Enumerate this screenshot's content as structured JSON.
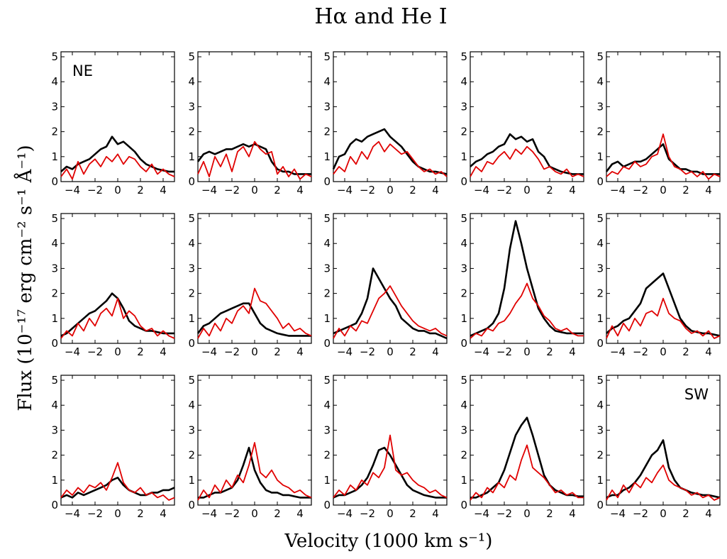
{
  "chart_data": {
    "type": "line",
    "title": "Hα and He I",
    "xlabel": "Velocity (1000 km s⁻¹)",
    "ylabel": "Flux (10⁻¹⁷ erg cm⁻² s⁻¹ Å⁻¹)",
    "xlim": [
      -5,
      5
    ],
    "ylim": [
      0,
      5.2
    ],
    "xticks": [
      -4,
      -2,
      0,
      2,
      4
    ],
    "xtick_labels": [
      "−4",
      "−2",
      "0",
      "2",
      "4"
    ],
    "yticks": [
      0,
      1,
      2,
      3,
      4,
      5
    ],
    "ytick_labels": [
      "0",
      "1",
      "2",
      "3",
      "4",
      "5"
    ],
    "colors": {
      "ha": "#000000",
      "he": "#e00000"
    },
    "corner_labels": {
      "ne": "NE",
      "sw": "SW"
    },
    "x": [
      -5,
      -4.5,
      -4,
      -3.5,
      -3,
      -2.5,
      -2,
      -1.5,
      -1,
      -0.5,
      0,
      0.5,
      1,
      1.5,
      2,
      2.5,
      3,
      3.5,
      4,
      4.5,
      5
    ],
    "panels": [
      {
        "row": 0,
        "col": 0,
        "label": "NE",
        "series": [
          {
            "name": "Hα",
            "values": [
              0.4,
              0.6,
              0.5,
              0.7,
              0.8,
              0.9,
              1.1,
              1.3,
              1.4,
              1.8,
              1.5,
              1.6,
              1.4,
              1.2,
              0.9,
              0.7,
              0.6,
              0.5,
              0.45,
              0.4,
              0.4
            ]
          },
          {
            "name": "He I",
            "values": [
              0.2,
              0.5,
              0.1,
              0.8,
              0.3,
              0.7,
              0.9,
              0.6,
              1.0,
              0.8,
              1.1,
              0.7,
              1.0,
              0.9,
              0.6,
              0.4,
              0.7,
              0.3,
              0.5,
              0.3,
              0.2
            ]
          }
        ]
      },
      {
        "row": 0,
        "col": 1,
        "label": "",
        "series": [
          {
            "name": "Hα",
            "values": [
              0.8,
              1.1,
              1.2,
              1.1,
              1.2,
              1.3,
              1.3,
              1.4,
              1.5,
              1.4,
              1.5,
              1.4,
              1.3,
              0.8,
              0.5,
              0.4,
              0.4,
              0.3,
              0.3,
              0.3,
              0.3
            ]
          },
          {
            "name": "He I",
            "values": [
              0.3,
              0.8,
              0.2,
              1.0,
              0.6,
              1.1,
              0.4,
              1.2,
              1.4,
              1.0,
              1.6,
              1.3,
              1.1,
              1.2,
              0.3,
              0.6,
              0.2,
              0.5,
              0.1,
              0.3,
              0.2
            ]
          }
        ]
      },
      {
        "row": 0,
        "col": 2,
        "label": "",
        "series": [
          {
            "name": "Hα",
            "values": [
              0.5,
              1.0,
              1.1,
              1.5,
              1.7,
              1.6,
              1.8,
              1.9,
              2.0,
              2.1,
              1.8,
              1.6,
              1.4,
              1.1,
              0.8,
              0.6,
              0.5,
              0.4,
              0.4,
              0.35,
              0.3
            ]
          },
          {
            "name": "He I",
            "values": [
              0.3,
              0.6,
              0.4,
              1.0,
              0.7,
              1.2,
              0.9,
              1.4,
              1.6,
              1.2,
              1.5,
              1.3,
              1.1,
              1.2,
              0.9,
              0.6,
              0.4,
              0.5,
              0.3,
              0.4,
              0.2
            ]
          }
        ]
      },
      {
        "row": 0,
        "col": 3,
        "label": "",
        "series": [
          {
            "name": "Hα",
            "values": [
              0.6,
              0.8,
              0.9,
              1.1,
              1.2,
              1.4,
              1.5,
              1.9,
              1.7,
              1.8,
              1.6,
              1.7,
              1.2,
              1.0,
              0.6,
              0.5,
              0.4,
              0.35,
              0.3,
              0.3,
              0.3
            ]
          },
          {
            "name": "He I",
            "values": [
              0.2,
              0.6,
              0.4,
              0.8,
              0.7,
              1.0,
              1.2,
              0.9,
              1.3,
              1.1,
              1.4,
              1.2,
              0.9,
              0.5,
              0.6,
              0.4,
              0.3,
              0.5,
              0.2,
              0.3,
              0.2
            ]
          }
        ]
      },
      {
        "row": 0,
        "col": 4,
        "label": "",
        "series": [
          {
            "name": "Hα",
            "values": [
              0.4,
              0.7,
              0.8,
              0.6,
              0.7,
              0.8,
              0.8,
              0.9,
              1.1,
              1.3,
              1.5,
              0.9,
              0.7,
              0.5,
              0.5,
              0.4,
              0.4,
              0.3,
              0.3,
              0.3,
              0.3
            ]
          },
          {
            "name": "He I",
            "values": [
              0.2,
              0.4,
              0.3,
              0.6,
              0.5,
              0.8,
              0.6,
              0.7,
              1.0,
              1.1,
              1.9,
              1.0,
              0.6,
              0.5,
              0.3,
              0.4,
              0.2,
              0.4,
              0.1,
              0.3,
              0.2
            ]
          }
        ]
      },
      {
        "row": 1,
        "col": 0,
        "label": "",
        "series": [
          {
            "name": "Hα",
            "values": [
              0.3,
              0.4,
              0.6,
              0.8,
              1.0,
              1.2,
              1.3,
              1.5,
              1.7,
              2.0,
              1.8,
              1.4,
              0.9,
              0.7,
              0.6,
              0.5,
              0.5,
              0.45,
              0.4,
              0.4,
              0.4
            ]
          },
          {
            "name": "He I",
            "values": [
              0.2,
              0.5,
              0.3,
              0.8,
              0.5,
              1.0,
              0.7,
              1.2,
              1.4,
              1.1,
              1.8,
              1.0,
              1.3,
              1.1,
              0.7,
              0.5,
              0.6,
              0.3,
              0.5,
              0.3,
              0.2
            ]
          }
        ]
      },
      {
        "row": 1,
        "col": 1,
        "label": "",
        "series": [
          {
            "name": "Hα",
            "values": [
              0.4,
              0.7,
              0.8,
              1.0,
              1.2,
              1.3,
              1.4,
              1.5,
              1.6,
              1.6,
              1.2,
              0.8,
              0.6,
              0.5,
              0.4,
              0.35,
              0.3,
              0.3,
              0.3,
              0.3,
              0.3
            ]
          },
          {
            "name": "He I",
            "values": [
              0.2,
              0.6,
              0.3,
              0.8,
              0.5,
              1.0,
              0.8,
              1.3,
              1.5,
              1.2,
              2.2,
              1.7,
              1.6,
              1.3,
              1.0,
              0.6,
              0.8,
              0.5,
              0.6,
              0.4,
              0.3
            ]
          }
        ]
      },
      {
        "row": 1,
        "col": 2,
        "label": "",
        "series": [
          {
            "name": "Hα",
            "values": [
              0.4,
              0.5,
              0.6,
              0.7,
              0.8,
              1.2,
              1.8,
              3.0,
              2.6,
              2.2,
              1.8,
              1.5,
              1.0,
              0.8,
              0.6,
              0.5,
              0.5,
              0.4,
              0.4,
              0.3,
              0.2
            ]
          },
          {
            "name": "He I",
            "values": [
              0.2,
              0.6,
              0.3,
              0.7,
              0.5,
              0.9,
              0.8,
              1.3,
              1.8,
              2.0,
              2.3,
              1.9,
              1.5,
              1.2,
              0.9,
              0.7,
              0.6,
              0.5,
              0.6,
              0.4,
              0.3
            ]
          }
        ]
      },
      {
        "row": 1,
        "col": 3,
        "label": "",
        "series": [
          {
            "name": "Hα",
            "values": [
              0.3,
              0.4,
              0.5,
              0.6,
              0.8,
              1.2,
              2.2,
              3.8,
              4.9,
              4.0,
              3.0,
              2.2,
              1.4,
              1.0,
              0.7,
              0.5,
              0.45,
              0.4,
              0.4,
              0.4,
              0.4
            ]
          },
          {
            "name": "He I",
            "values": [
              0.2,
              0.4,
              0.3,
              0.6,
              0.5,
              0.8,
              0.9,
              1.2,
              1.6,
              1.9,
              2.4,
              1.8,
              1.5,
              1.1,
              0.9,
              0.6,
              0.5,
              0.6,
              0.4,
              0.3,
              0.3
            ]
          }
        ]
      },
      {
        "row": 1,
        "col": 4,
        "label": "",
        "series": [
          {
            "name": "Hα",
            "values": [
              0.4,
              0.6,
              0.7,
              0.9,
              1.0,
              1.3,
              1.6,
              2.2,
              2.4,
              2.6,
              2.8,
              2.2,
              1.6,
              1.0,
              0.7,
              0.5,
              0.45,
              0.4,
              0.4,
              0.35,
              0.3
            ]
          },
          {
            "name": "He I",
            "values": [
              0.2,
              0.7,
              0.3,
              0.8,
              0.5,
              1.0,
              0.7,
              1.2,
              1.3,
              1.1,
              1.8,
              1.2,
              1.0,
              0.9,
              0.6,
              0.4,
              0.5,
              0.3,
              0.5,
              0.2,
              0.3
            ]
          }
        ]
      },
      {
        "row": 2,
        "col": 0,
        "label": "",
        "series": [
          {
            "name": "Hα",
            "values": [
              0.3,
              0.4,
              0.3,
              0.5,
              0.4,
              0.5,
              0.6,
              0.7,
              0.8,
              1.0,
              1.1,
              0.8,
              0.6,
              0.5,
              0.4,
              0.4,
              0.5,
              0.5,
              0.6,
              0.6,
              0.7
            ]
          },
          {
            "name": "He I",
            "values": [
              0.3,
              0.6,
              0.4,
              0.7,
              0.5,
              0.8,
              0.7,
              0.9,
              0.6,
              1.1,
              1.7,
              0.9,
              0.6,
              0.5,
              0.7,
              0.4,
              0.5,
              0.3,
              0.4,
              0.2,
              0.3
            ]
          }
        ]
      },
      {
        "row": 2,
        "col": 1,
        "label": "",
        "series": [
          {
            "name": "Hα",
            "values": [
              0.3,
              0.3,
              0.4,
              0.5,
              0.5,
              0.6,
              0.7,
              1.0,
              1.6,
              2.3,
              1.4,
              0.9,
              0.6,
              0.5,
              0.5,
              0.4,
              0.4,
              0.35,
              0.3,
              0.3,
              0.3
            ]
          },
          {
            "name": "He I",
            "values": [
              0.2,
              0.6,
              0.3,
              0.8,
              0.5,
              1.0,
              0.7,
              1.2,
              0.9,
              1.6,
              2.5,
              1.3,
              1.1,
              1.4,
              1.0,
              0.8,
              0.7,
              0.5,
              0.6,
              0.4,
              0.3
            ]
          }
        ]
      },
      {
        "row": 2,
        "col": 2,
        "label": "",
        "series": [
          {
            "name": "Hα",
            "values": [
              0.3,
              0.4,
              0.4,
              0.5,
              0.6,
              0.8,
              1.1,
              1.6,
              2.2,
              2.3,
              2.0,
              1.6,
              1.2,
              0.8,
              0.6,
              0.5,
              0.4,
              0.35,
              0.3,
              0.3,
              0.3
            ]
          },
          {
            "name": "He I",
            "values": [
              0.3,
              0.6,
              0.4,
              0.8,
              0.6,
              1.0,
              0.8,
              1.3,
              1.1,
              1.5,
              2.8,
              1.4,
              1.2,
              1.3,
              1.0,
              0.8,
              0.7,
              0.5,
              0.6,
              0.4,
              0.3
            ]
          }
        ]
      },
      {
        "row": 2,
        "col": 3,
        "label": "",
        "series": [
          {
            "name": "Hα",
            "values": [
              0.3,
              0.3,
              0.4,
              0.5,
              0.7,
              0.9,
              1.4,
              2.1,
              2.8,
              3.2,
              3.5,
              2.8,
              2.0,
              1.2,
              0.8,
              0.6,
              0.5,
              0.4,
              0.4,
              0.35,
              0.35
            ]
          },
          {
            "name": "He I",
            "values": [
              0.2,
              0.5,
              0.3,
              0.7,
              0.5,
              0.9,
              0.7,
              1.2,
              1.0,
              1.8,
              2.4,
              1.5,
              1.3,
              1.1,
              0.8,
              0.5,
              0.6,
              0.4,
              0.5,
              0.3,
              0.3
            ]
          }
        ]
      },
      {
        "row": 2,
        "col": 4,
        "label": "SW",
        "series": [
          {
            "name": "Hα",
            "values": [
              0.3,
              0.4,
              0.4,
              0.6,
              0.7,
              0.9,
              1.2,
              1.6,
              2.0,
              2.2,
              2.6,
              1.5,
              1.0,
              0.7,
              0.6,
              0.5,
              0.45,
              0.4,
              0.4,
              0.35,
              0.3
            ]
          },
          {
            "name": "He I",
            "values": [
              0.2,
              0.6,
              0.3,
              0.8,
              0.5,
              0.9,
              0.7,
              1.1,
              0.9,
              1.3,
              1.6,
              1.0,
              0.8,
              0.7,
              0.6,
              0.4,
              0.5,
              0.3,
              0.4,
              0.2,
              0.3
            ]
          }
        ]
      }
    ]
  }
}
